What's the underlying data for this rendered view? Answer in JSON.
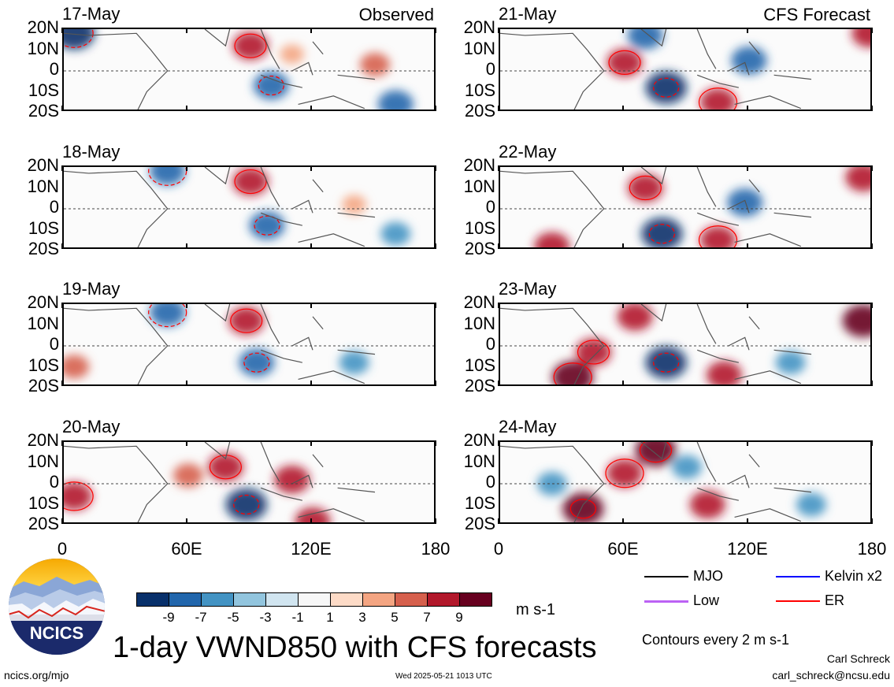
{
  "observed_label": "Observed",
  "forecast_label": "CFS Forecast",
  "panels": [
    {
      "date": "17-May",
      "col": 0,
      "row": 0
    },
    {
      "date": "18-May",
      "col": 0,
      "row": 1
    },
    {
      "date": "19-May",
      "col": 0,
      "row": 2
    },
    {
      "date": "20-May",
      "col": 0,
      "row": 3
    },
    {
      "date": "21-May",
      "col": 1,
      "row": 0
    },
    {
      "date": "22-May",
      "col": 1,
      "row": 1
    },
    {
      "date": "23-May",
      "col": 1,
      "row": 2
    },
    {
      "date": "24-May",
      "col": 1,
      "row": 3
    }
  ],
  "lat_labels": [
    "20N",
    "10N",
    "0",
    "10S",
    "20S"
  ],
  "lon_labels": [
    "0",
    "60E",
    "120E",
    "180"
  ],
  "colorbar": {
    "colors": [
      "#08306b",
      "#2166ac",
      "#4393c3",
      "#92c5de",
      "#d1e5f0",
      "#f7f7f7",
      "#fddbc7",
      "#f4a582",
      "#d6604d",
      "#b2182b",
      "#67001f"
    ],
    "labels": [
      "-9",
      "-7",
      "-5",
      "-3",
      "-1",
      "1",
      "3",
      "5",
      "7",
      "9"
    ],
    "units": "m s-1"
  },
  "legend": [
    {
      "label": "MJO",
      "color": "#000000"
    },
    {
      "label": "Kelvin x2",
      "color": "#0000ff"
    },
    {
      "label": "Low",
      "color": "#a020f0"
    },
    {
      "label": "ER",
      "color": "#ff0000"
    }
  ],
  "contours_note": "Contours every 2 m s-1",
  "title": "1-day VWND850 with CFS forecasts",
  "logo_text": "NCICS",
  "footer_left": "ncics.org/mjo",
  "footer_center": "Wed 2025-05-21 1013 UTC",
  "author": "Carl Schreck",
  "author_email": "carl_schreck@ncsu.edu",
  "chart_data": {
    "type": "heatmap",
    "title": "1-day VWND850 with CFS forecasts",
    "variable": "850 hPa meridional wind anomaly",
    "units": "m s-1",
    "x_axis": {
      "range": [
        0,
        180
      ],
      "ticks": [
        "0",
        "60E",
        "120E",
        "180"
      ]
    },
    "y_axis": {
      "range": [
        -20,
        20
      ],
      "ticks": [
        "20N",
        "10N",
        "0",
        "10S",
        "20S"
      ]
    },
    "color_levels": [
      -9,
      -7,
      -5,
      -3,
      -1,
      1,
      3,
      5,
      7,
      9
    ],
    "contour_interval": 2,
    "panels": [
      {
        "date": "17-May",
        "source": "Observed",
        "features": [
          {
            "lon": 100,
            "lat": -7,
            "value": -7
          },
          {
            "lon": 90,
            "lat": 12,
            "value": 7
          },
          {
            "lon": 5,
            "lat": 18,
            "value": -9
          },
          {
            "lon": 160,
            "lat": -16,
            "value": -7
          },
          {
            "lon": 150,
            "lat": 3,
            "value": 5
          },
          {
            "lon": 110,
            "lat": 8,
            "value": 3
          }
        ]
      },
      {
        "date": "18-May",
        "source": "Observed",
        "features": [
          {
            "lon": 98,
            "lat": -8,
            "value": -7
          },
          {
            "lon": 90,
            "lat": 13,
            "value": 7
          },
          {
            "lon": 50,
            "lat": 18,
            "value": -7
          },
          {
            "lon": 140,
            "lat": 2,
            "value": 3
          },
          {
            "lon": 160,
            "lat": -12,
            "value": -5
          }
        ]
      },
      {
        "date": "19-May",
        "source": "Observed",
        "features": [
          {
            "lon": 93,
            "lat": -8,
            "value": -7
          },
          {
            "lon": 88,
            "lat": 12,
            "value": 7
          },
          {
            "lon": 50,
            "lat": 16,
            "value": -7
          },
          {
            "lon": 140,
            "lat": -8,
            "value": -5
          },
          {
            "lon": 5,
            "lat": -10,
            "value": 5
          }
        ]
      },
      {
        "date": "20-May",
        "source": "Observed",
        "features": [
          {
            "lon": 88,
            "lat": -10,
            "value": -9
          },
          {
            "lon": 78,
            "lat": 8,
            "value": 7
          },
          {
            "lon": 5,
            "lat": -6,
            "value": 7
          },
          {
            "lon": 120,
            "lat": -18,
            "value": 7
          },
          {
            "lon": 110,
            "lat": 2,
            "value": 7
          },
          {
            "lon": 60,
            "lat": 4,
            "value": 5
          }
        ]
      },
      {
        "date": "21-May",
        "source": "CFS Forecast",
        "features": [
          {
            "lon": 80,
            "lat": -8,
            "value": -9
          },
          {
            "lon": 60,
            "lat": 4,
            "value": 7
          },
          {
            "lon": 105,
            "lat": -15,
            "value": 7
          },
          {
            "lon": 120,
            "lat": 5,
            "value": -7
          },
          {
            "lon": 178,
            "lat": 18,
            "value": 7
          },
          {
            "lon": 70,
            "lat": 17,
            "value": -7
          }
        ]
      },
      {
        "date": "22-May",
        "source": "CFS Forecast",
        "features": [
          {
            "lon": 78,
            "lat": -12,
            "value": -9
          },
          {
            "lon": 70,
            "lat": 10,
            "value": 7
          },
          {
            "lon": 105,
            "lat": -15,
            "value": 7
          },
          {
            "lon": 118,
            "lat": 3,
            "value": -7
          },
          {
            "lon": 25,
            "lat": -18,
            "value": 7
          },
          {
            "lon": 175,
            "lat": 15,
            "value": 7
          }
        ]
      },
      {
        "date": "23-May",
        "source": "CFS Forecast",
        "features": [
          {
            "lon": 80,
            "lat": -8,
            "value": -9
          },
          {
            "lon": 45,
            "lat": -3,
            "value": 7
          },
          {
            "lon": 35,
            "lat": -15,
            "value": 9
          },
          {
            "lon": 65,
            "lat": 14,
            "value": 7
          },
          {
            "lon": 108,
            "lat": -14,
            "value": 7
          },
          {
            "lon": 140,
            "lat": -8,
            "value": -5
          },
          {
            "lon": 175,
            "lat": 12,
            "value": 9
          }
        ]
      },
      {
        "date": "24-May",
        "source": "CFS Forecast",
        "features": [
          {
            "lon": 40,
            "lat": -12,
            "value": 9
          },
          {
            "lon": 75,
            "lat": 16,
            "value": 9
          },
          {
            "lon": 60,
            "lat": 5,
            "value": 7
          },
          {
            "lon": 100,
            "lat": -10,
            "value": 7
          },
          {
            "lon": 90,
            "lat": 8,
            "value": -5
          },
          {
            "lon": 150,
            "lat": -10,
            "value": -5
          },
          {
            "lon": 25,
            "lat": 0,
            "value": -5
          }
        ]
      }
    ]
  }
}
